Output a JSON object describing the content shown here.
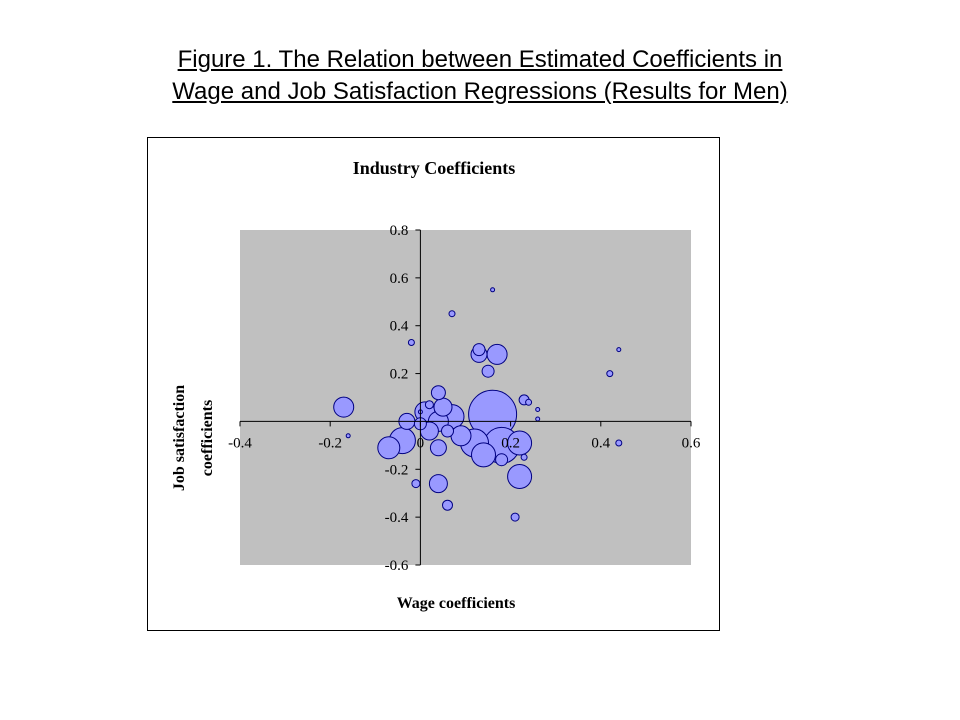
{
  "slide": {
    "title_line1": "Figure 1. The Relation between Estimated Coefficients in",
    "title_line2": "Wage and Job Satisfaction Regressions (Results for Men)"
  },
  "chart_data": {
    "type": "scatter",
    "title": "Industry Coefficients",
    "xlabel": "Wage coefficients",
    "ylabel_line1": "Job satisfaction",
    "ylabel_line2": "coefficients",
    "xlim": [
      -0.4,
      0.6
    ],
    "ylim": [
      -0.6,
      0.8
    ],
    "xticks": [
      -0.4,
      -0.2,
      0,
      0.2,
      0.4,
      0.6
    ],
    "xtick_labels": [
      "-0.4",
      "-0.2",
      "0",
      "0.2",
      "0.4",
      "0.6"
    ],
    "yticks": [
      0.8,
      0.6,
      0.4,
      0.2,
      -0.2,
      -0.4,
      -0.6
    ],
    "ytick_labels": [
      "0.8",
      "0.6",
      "0.4",
      "0.2",
      "-0.2",
      "-0.4",
      "-0.6"
    ],
    "grid": false,
    "legend": "none",
    "marker": "bubble",
    "colors": {
      "plot_background": "#c0c0c0",
      "bubble_fill": "#9999ff",
      "bubble_stroke": "#000080",
      "axis": "#000000"
    },
    "points": [
      {
        "x": 0.16,
        "y": 0.55,
        "size": 2
      },
      {
        "x": 0.07,
        "y": 0.45,
        "size": 3
      },
      {
        "x": 0.44,
        "y": 0.3,
        "size": 2
      },
      {
        "x": -0.02,
        "y": 0.33,
        "size": 3
      },
      {
        "x": 0.13,
        "y": 0.3,
        "size": 6
      },
      {
        "x": 0.13,
        "y": 0.28,
        "size": 8
      },
      {
        "x": 0.17,
        "y": 0.28,
        "size": 10
      },
      {
        "x": 0.42,
        "y": 0.2,
        "size": 3
      },
      {
        "x": 0.15,
        "y": 0.21,
        "size": 6
      },
      {
        "x": 0.04,
        "y": 0.12,
        "size": 7
      },
      {
        "x": 0.23,
        "y": 0.09,
        "size": 5
      },
      {
        "x": 0.24,
        "y": 0.08,
        "size": 3
      },
      {
        "x": 0.26,
        "y": 0.05,
        "size": 2
      },
      {
        "x": 0.26,
        "y": 0.01,
        "size": 2
      },
      {
        "x": -0.17,
        "y": 0.06,
        "size": 10
      },
      {
        "x": 0.02,
        "y": 0.07,
        "size": 4
      },
      {
        "x": 0.05,
        "y": 0.06,
        "size": 9
      },
      {
        "x": 0.01,
        "y": 0.04,
        "size": 10
      },
      {
        "x": 0.0,
        "y": 0.04,
        "size": 2
      },
      {
        "x": 0.04,
        "y": 0.0,
        "size": 10
      },
      {
        "x": 0.07,
        "y": 0.02,
        "size": 12
      },
      {
        "x": 0.16,
        "y": 0.03,
        "size": 24
      },
      {
        "x": -0.03,
        "y": 0.0,
        "size": 8
      },
      {
        "x": 0.0,
        "y": -0.01,
        "size": 6
      },
      {
        "x": 0.02,
        "y": -0.04,
        "size": 9
      },
      {
        "x": 0.09,
        "y": -0.06,
        "size": 10
      },
      {
        "x": 0.06,
        "y": -0.04,
        "size": 6
      },
      {
        "x": 0.12,
        "y": -0.09,
        "size": 14
      },
      {
        "x": 0.18,
        "y": -0.1,
        "size": 18
      },
      {
        "x": 0.22,
        "y": -0.09,
        "size": 12
      },
      {
        "x": -0.16,
        "y": -0.06,
        "size": 2
      },
      {
        "x": -0.04,
        "y": -0.08,
        "size": 13
      },
      {
        "x": -0.07,
        "y": -0.11,
        "size": 11
      },
      {
        "x": 0.04,
        "y": -0.11,
        "size": 8
      },
      {
        "x": 0.14,
        "y": -0.14,
        "size": 12
      },
      {
        "x": 0.18,
        "y": -0.16,
        "size": 6
      },
      {
        "x": 0.23,
        "y": -0.15,
        "size": 3
      },
      {
        "x": 0.44,
        "y": -0.09,
        "size": 3
      },
      {
        "x": 0.22,
        "y": -0.23,
        "size": 12
      },
      {
        "x": -0.01,
        "y": -0.26,
        "size": 4
      },
      {
        "x": 0.04,
        "y": -0.26,
        "size": 9
      },
      {
        "x": 0.06,
        "y": -0.35,
        "size": 5
      },
      {
        "x": 0.21,
        "y": -0.4,
        "size": 4
      }
    ]
  }
}
